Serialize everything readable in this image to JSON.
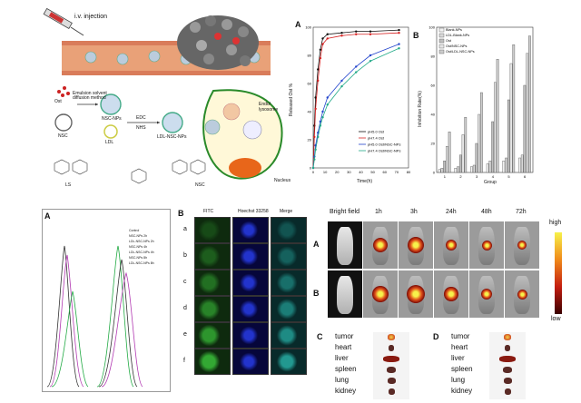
{
  "schematic": {
    "iv_label": "i.v. injection",
    "ost_label": "Ost",
    "process_label": "Emulsion solvent diffusion method",
    "nsc_label": "NSC",
    "nsc_nps_label": "NSC-NPs",
    "ldl_label": "LDL",
    "ldl_nsc_nps_label": "LDL-NSC-NPs",
    "edc_label": "EDC",
    "nhs_label": "NHS",
    "endo_label": "Endo/ lysosome",
    "nucleus_label": "Nucleus",
    "ls_label": "LS",
    "nsc_struct_label": "NSC"
  },
  "panelA_release": {
    "letter": "A",
    "chart_data": {
      "type": "line",
      "ylabel": "Released Ost %",
      "xlabel": "Time(h)",
      "xticks": [
        0,
        10,
        20,
        30,
        40,
        50,
        60,
        70,
        80
      ],
      "ylim": [
        0,
        100
      ],
      "series": [
        {
          "name": "pH5.0 Ost",
          "color": "#111111",
          "x": [
            0,
            1,
            2,
            4,
            6,
            8,
            12,
            24,
            36,
            48,
            72
          ],
          "y": [
            0,
            30,
            50,
            70,
            84,
            92,
            95,
            96,
            97,
            97,
            98
          ]
        },
        {
          "name": "pH7.4 Ost",
          "color": "#d62222",
          "x": [
            0,
            1,
            2,
            4,
            6,
            8,
            12,
            24,
            36,
            48,
            72
          ],
          "y": [
            0,
            22,
            42,
            62,
            78,
            88,
            92,
            94,
            95,
            95,
            96
          ]
        },
        {
          "name": "pH5.0 Ost/NSC-NPs",
          "color": "#2244cc",
          "x": [
            0,
            1,
            2,
            4,
            6,
            8,
            12,
            24,
            36,
            48,
            72
          ],
          "y": [
            0,
            8,
            16,
            25,
            33,
            40,
            50,
            62,
            72,
            80,
            88
          ]
        },
        {
          "name": "pH7.4 Ost/NSC-NPs",
          "color": "#22aa88",
          "x": [
            0,
            1,
            2,
            4,
            6,
            8,
            12,
            24,
            36,
            48,
            72
          ],
          "y": [
            0,
            6,
            13,
            22,
            30,
            36,
            45,
            58,
            68,
            76,
            85
          ]
        }
      ]
    }
  },
  "panelB_inhibition": {
    "letter": "B",
    "chart_data": {
      "type": "bar",
      "ylabel": "Inhibition Rate(%)",
      "xlabel": "Group",
      "categories": [
        "1",
        "2",
        "3",
        "4",
        "5",
        "6"
      ],
      "ylim": [
        0,
        100
      ],
      "series": [
        {
          "name": "Blank-NPs",
          "values": [
            2,
            3,
            4,
            6,
            8,
            10
          ]
        },
        {
          "name": "LDL-Blank-NPs",
          "values": [
            3,
            4,
            5,
            8,
            10,
            12
          ]
        },
        {
          "name": "Ost",
          "values": [
            8,
            12,
            20,
            35,
            50,
            60
          ]
        },
        {
          "name": "Ost/NSC-NPs",
          "values": [
            18,
            26,
            40,
            62,
            75,
            82
          ]
        },
        {
          "name": "Ost/LDL-NSC-NPs",
          "values": [
            28,
            38,
            55,
            78,
            88,
            94
          ]
        }
      ]
    }
  },
  "panelA_flow": {
    "letter": "A",
    "legend": [
      "Control",
      "NSC-NPs 2h",
      "LDL-NSC-NPs 2h",
      "NSC-NPs 4h",
      "LDL-NSC-NPs 4h",
      "NSC-NPs 8h",
      "LDL-NSC-NPs 8h"
    ]
  },
  "panelB_confocal": {
    "letter": "B",
    "col_headers": [
      "FITC",
      "Hoechst 33258",
      "Merge"
    ],
    "row_labels": [
      "a",
      "b",
      "c",
      "d",
      "e",
      "f"
    ]
  },
  "imaging": {
    "headers": [
      "Bright field",
      "1h",
      "3h",
      "24h",
      "48h",
      "72h"
    ],
    "row_labels": [
      "A",
      "B"
    ],
    "colorbar_high": "high",
    "colorbar_low": "low",
    "panel_c": "C",
    "panel_d": "D",
    "organs": [
      "tumor",
      "heart",
      "liver",
      "spleen",
      "lung",
      "kidney"
    ]
  }
}
